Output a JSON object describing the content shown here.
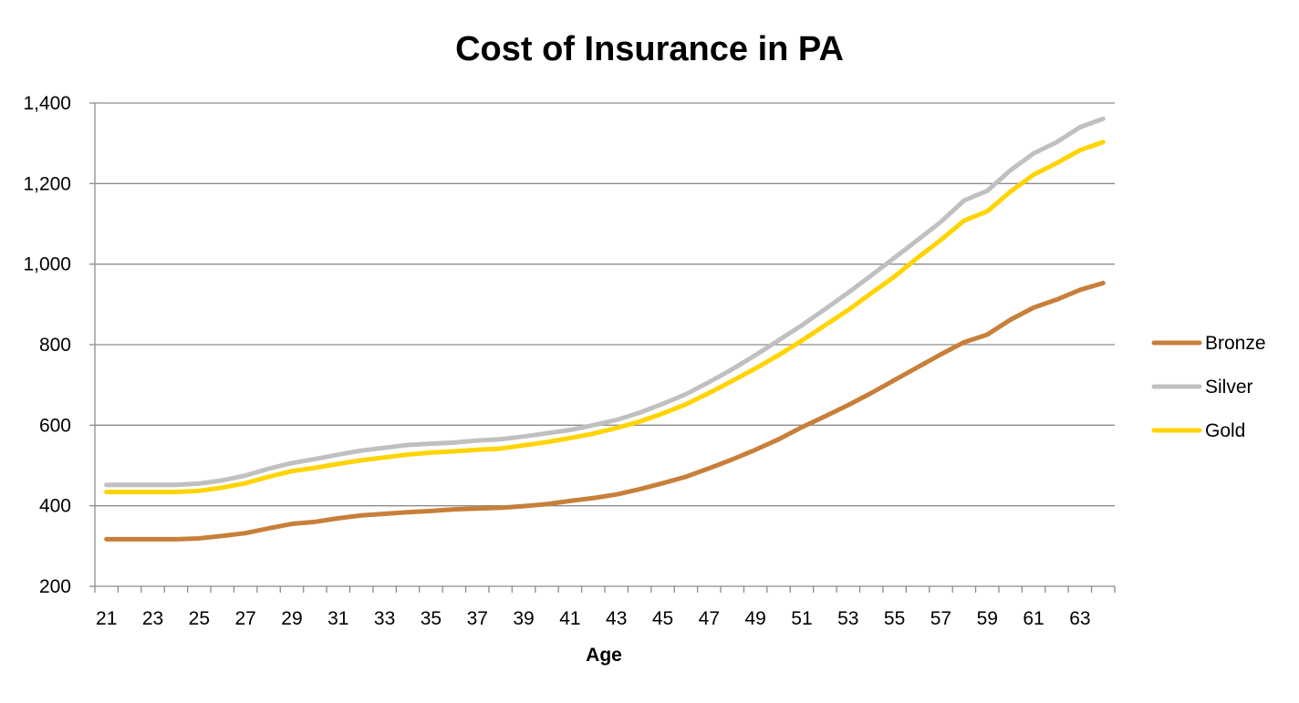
{
  "chart_data": {
    "type": "line",
    "title": "Cost of Insurance in PA",
    "xlabel": "Age",
    "ylabel": "",
    "ylim": [
      200,
      1400
    ],
    "yticks": [
      200,
      400,
      600,
      800,
      1000,
      1200,
      1400
    ],
    "ytick_labels": [
      "200",
      "400",
      "600",
      "800",
      "1,000",
      "1,200",
      "1,400"
    ],
    "x": [
      21,
      22,
      23,
      24,
      25,
      26,
      27,
      28,
      29,
      30,
      31,
      32,
      33,
      34,
      35,
      36,
      37,
      38,
      39,
      40,
      41,
      42,
      43,
      44,
      45,
      46,
      47,
      48,
      49,
      50,
      51,
      52,
      53,
      54,
      55,
      56,
      57,
      58,
      59,
      60,
      61,
      62,
      63,
      64
    ],
    "xtick_labels": [
      "21",
      "23",
      "25",
      "27",
      "29",
      "31",
      "33",
      "35",
      "37",
      "39",
      "41",
      "43",
      "45",
      "47",
      "49",
      "51",
      "53",
      "55",
      "57",
      "59",
      "61",
      "63"
    ],
    "grid": true,
    "legend_position": "right",
    "series": [
      {
        "name": "Bronze",
        "color": "#c87f3a",
        "values": [
          317,
          317,
          317,
          317,
          319,
          325,
          332,
          344,
          355,
          360,
          369,
          376,
          380,
          384,
          387,
          391,
          393,
          395,
          399,
          404,
          412,
          419,
          428,
          441,
          456,
          472,
          493,
          515,
          539,
          565,
          595,
          622,
          650,
          680,
          712,
          744,
          776,
          806,
          825,
          862,
          892,
          912,
          936,
          953
        ]
      },
      {
        "name": "Silver",
        "color": "#c0c0c0",
        "values": [
          452,
          452,
          452,
          452,
          455,
          463,
          475,
          492,
          506,
          516,
          527,
          537,
          544,
          551,
          554,
          557,
          562,
          565,
          572,
          580,
          588,
          600,
          613,
          631,
          653,
          677,
          707,
          739,
          774,
          811,
          848,
          888,
          929,
          972,
          1016,
          1060,
          1105,
          1158,
          1182,
          1233,
          1275,
          1303,
          1340,
          1361
        ]
      },
      {
        "name": "Gold",
        "color": "#ffd400",
        "values": [
          434,
          434,
          434,
          434,
          437,
          445,
          456,
          472,
          486,
          494,
          504,
          513,
          520,
          527,
          532,
          535,
          539,
          542,
          550,
          558,
          568,
          579,
          593,
          609,
          629,
          652,
          680,
          710,
          741,
          774,
          810,
          848,
          886,
          928,
          969,
          1016,
          1060,
          1108,
          1131,
          1180,
          1222,
          1251,
          1283,
          1303
        ]
      }
    ]
  }
}
